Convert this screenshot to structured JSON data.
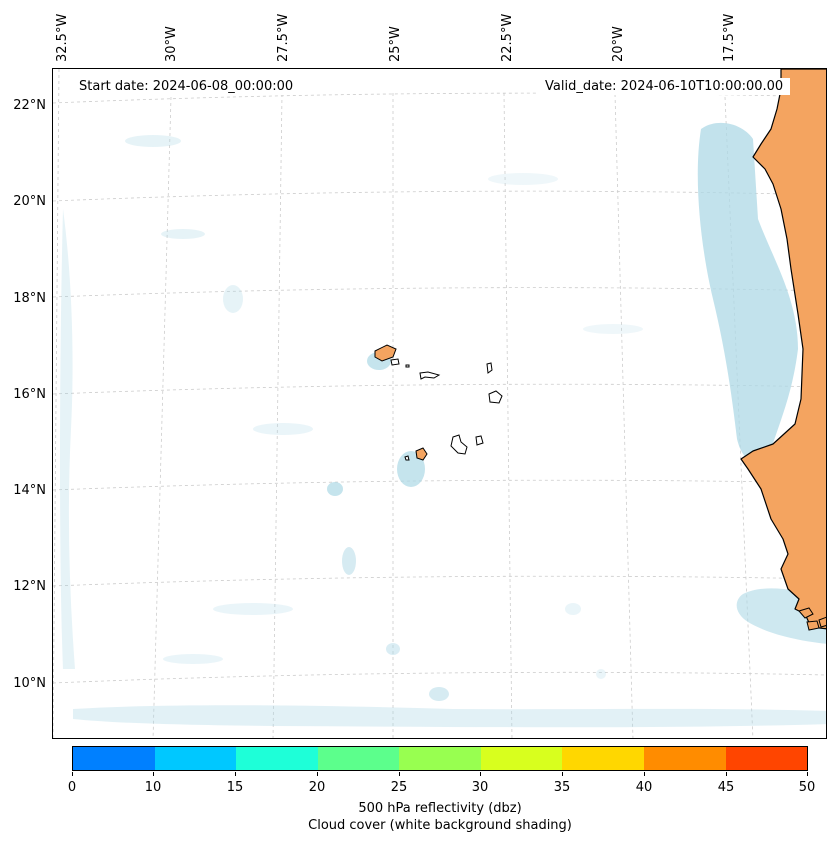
{
  "map": {
    "start_date_label": "Start date: 2024-06-08_00:00:00",
    "valid_date_label": "Valid_date: 2024-06-10T10:00:00.00",
    "lon_ticks": [
      "32.5°W",
      "30°W",
      "27.5°W",
      "25°W",
      "22.5°W",
      "20°W",
      "17.5°W"
    ],
    "lat_ticks": [
      "22°N",
      "20°N",
      "18°N",
      "16°N",
      "14°N",
      "12°N",
      "10°N"
    ],
    "land_color": "#f4a460",
    "cloud_color": "#add8e6",
    "coastline_color": "#000000"
  },
  "colorbar": {
    "ticks": [
      "0",
      "10",
      "15",
      "20",
      "25",
      "30",
      "35",
      "40",
      "45",
      "50"
    ],
    "colors": [
      "#0080ff",
      "#00c8ff",
      "#1effd8",
      "#5cff8c",
      "#98ff50",
      "#d8ff1e",
      "#ffd700",
      "#ff8c00",
      "#ff4500"
    ],
    "label_line1": "500 hPa reflectivity (dbz)",
    "label_line2": "Cloud cover (white background shading)"
  }
}
